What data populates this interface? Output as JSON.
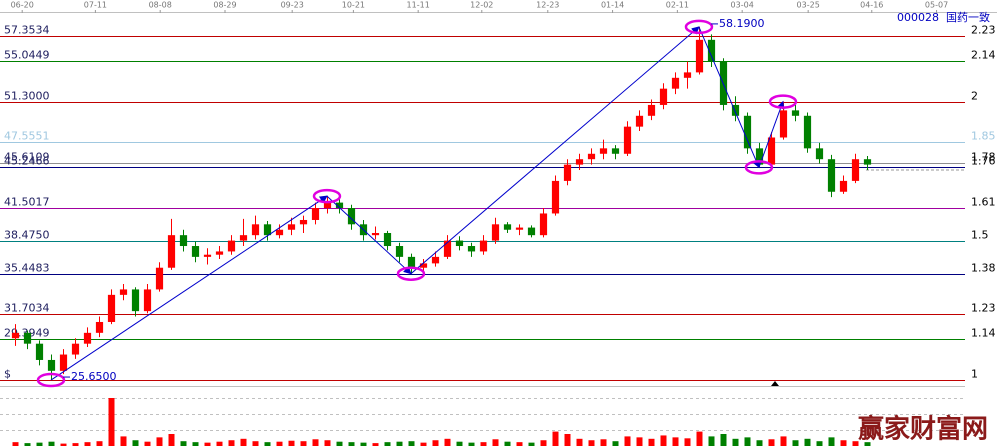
{
  "chart_data": {
    "type": "candlestick",
    "code": "000028",
    "name": "国药一致",
    "watermark": "赢家财富网",
    "xlim": [
      -1.25,
      79.17
    ],
    "ylim": [
      19.48,
      60.67
    ],
    "vlim": [
      0,
      100
    ],
    "up_color": "#ff0000",
    "down_color": "#008000",
    "trend_color": "#0000cc",
    "highlight_color": "#e000e0",
    "xticks": [
      {
        "value": 0.6,
        "label": "06-20"
      },
      {
        "value": 6.7,
        "label": "07-11"
      },
      {
        "value": 12.1,
        "label": "08-08"
      },
      {
        "value": 17.5,
        "label": "08-29"
      },
      {
        "value": 23.1,
        "label": "09-23"
      },
      {
        "value": 28.2,
        "label": "10-21"
      },
      {
        "value": 33.6,
        "label": "11-11"
      },
      {
        "value": 38.9,
        "label": "12-02"
      },
      {
        "value": 44.4,
        "label": "12-23"
      },
      {
        "value": 49.8,
        "label": "01-14"
      },
      {
        "value": 55.2,
        "label": "02-11"
      },
      {
        "value": 60.6,
        "label": "03-04"
      },
      {
        "value": 66.1,
        "label": "03-25"
      },
      {
        "value": 71.4,
        "label": "04-16"
      },
      {
        "value": 76.8,
        "label": "05-07"
      }
    ],
    "levels": [
      {
        "value": 57.3534,
        "label": "57.3534",
        "ratio": 2.23,
        "color": "#c00000"
      },
      {
        "value": 55.0449,
        "label": "55.0449",
        "ratio": 2.14,
        "color": "#008000"
      },
      {
        "value": 51.3,
        "label": "51.3000",
        "ratio": 2,
        "color": "#c00000"
      },
      {
        "value": 47.5551,
        "label": "47.5551",
        "ratio": 1.85,
        "color": "#a0c8e0"
      },
      {
        "value": 45.6109,
        "label": "45.6109",
        "ratio": 1.78,
        "color": "#909090"
      },
      {
        "value": 45.2466,
        "label": "45.2466",
        "ratio": 1.76,
        "color": "#000080"
      },
      {
        "value": 41.5017,
        "label": "41.5017",
        "ratio": 1.61,
        "color": "#a000a0"
      },
      {
        "value": 38.475,
        "label": "38.4750",
        "ratio": 1.5,
        "color": "#008080"
      },
      {
        "value": 35.4483,
        "label": "35.4483",
        "ratio": 1.38,
        "color": "#000080"
      },
      {
        "value": 31.7034,
        "label": "31.7034",
        "ratio": 1.23,
        "color": "#c00000"
      },
      {
        "value": 29.3949,
        "label": "29.3949",
        "ratio": 1.14,
        "color": "#008000"
      },
      {
        "value": 25.65,
        "label": "$",
        "ratio": 1,
        "color": "#c00000"
      }
    ],
    "trend": [
      {
        "i": 3,
        "price": 25.65,
        "label": "25.6500"
      },
      {
        "i": 26,
        "price": 42.6
      },
      {
        "i": 33,
        "price": 35.45
      },
      {
        "i": 57,
        "price": 58.19,
        "label": "58.1900"
      },
      {
        "i": 62,
        "price": 45.25
      },
      {
        "i": 64,
        "price": 51.3
      }
    ],
    "ohlc": [
      [
        29.5,
        30.8,
        28.8,
        30
      ],
      [
        30,
        30.2,
        28.5,
        29
      ],
      [
        29,
        29.3,
        27,
        27.5
      ],
      [
        27.5,
        28,
        25.65,
        26.5
      ],
      [
        26.5,
        28.5,
        26.2,
        28
      ],
      [
        28,
        29.5,
        27.6,
        29
      ],
      [
        29,
        30.5,
        28.7,
        30
      ],
      [
        30,
        31.5,
        29.6,
        31
      ],
      [
        31,
        34,
        30.8,
        33.5
      ],
      [
        33.5,
        34.5,
        33,
        34
      ],
      [
        34,
        34.2,
        31.5,
        32
      ],
      [
        32,
        34.5,
        31.8,
        34
      ],
      [
        34,
        36.5,
        33.8,
        36
      ],
      [
        36,
        40.5,
        35.8,
        39
      ],
      [
        39,
        39.5,
        37.5,
        38
      ],
      [
        38,
        38.4,
        36.5,
        37
      ],
      [
        37,
        37.8,
        36.3,
        37.2
      ],
      [
        37.2,
        38,
        36.8,
        37.5
      ],
      [
        37.5,
        39,
        37.2,
        38.5
      ],
      [
        38.5,
        40.5,
        38,
        39
      ],
      [
        39,
        40.8,
        38.6,
        40
      ],
      [
        40,
        40.3,
        38.5,
        39
      ],
      [
        39,
        40,
        38.7,
        39.5
      ],
      [
        39.5,
        40.6,
        39,
        40
      ],
      [
        40,
        40.8,
        39.2,
        40.4
      ],
      [
        40.4,
        42,
        40,
        41.5
      ],
      [
        41.5,
        42.6,
        41,
        42
      ],
      [
        42,
        42.3,
        41,
        41.5
      ],
      [
        41.5,
        41.8,
        39.5,
        40
      ],
      [
        40,
        40.4,
        38.5,
        39
      ],
      [
        39,
        39.8,
        38.6,
        39.2
      ],
      [
        39.2,
        39.4,
        37.6,
        38
      ],
      [
        38,
        38.3,
        36.5,
        37
      ],
      [
        37,
        37.3,
        35.45,
        36
      ],
      [
        36,
        36.8,
        35.6,
        36.4
      ],
      [
        36.4,
        37.5,
        36.1,
        37
      ],
      [
        37,
        39,
        36.8,
        38.5
      ],
      [
        38.5,
        38.9,
        37.6,
        38
      ],
      [
        38,
        38.3,
        37,
        37.5
      ],
      [
        37.5,
        39,
        37.2,
        38.5
      ],
      [
        38.5,
        40.6,
        38.2,
        40
      ],
      [
        40,
        40.2,
        39.2,
        39.5
      ],
      [
        39.5,
        40,
        39,
        39.7
      ],
      [
        39.7,
        39.9,
        38.8,
        39
      ],
      [
        39,
        41.5,
        38.8,
        41
      ],
      [
        41,
        44.5,
        40.8,
        44
      ],
      [
        44,
        46,
        43.6,
        45.5
      ],
      [
        45.5,
        46.5,
        45,
        46
      ],
      [
        46,
        47,
        45.5,
        46.5
      ],
      [
        46.5,
        47.8,
        46,
        47
      ],
      [
        47,
        47.3,
        46,
        46.5
      ],
      [
        46.5,
        49.5,
        46.3,
        49
      ],
      [
        49,
        50.5,
        48.6,
        50
      ],
      [
        50,
        51.5,
        49.6,
        51
      ],
      [
        51,
        53,
        50.6,
        52.5
      ],
      [
        52.5,
        54,
        52,
        53.5
      ],
      [
        53.5,
        55,
        52.5,
        54
      ],
      [
        54,
        58.19,
        53.8,
        57
      ],
      [
        57,
        57.5,
        54.5,
        55
      ],
      [
        55,
        55.3,
        50.5,
        51
      ],
      [
        51,
        51.8,
        49.5,
        50
      ],
      [
        50,
        50.3,
        46.5,
        47
      ],
      [
        47,
        47.5,
        45.25,
        45.5
      ],
      [
        45.5,
        48.5,
        45.3,
        48
      ],
      [
        48,
        51.3,
        47.8,
        50.5
      ],
      [
        50.5,
        51,
        49.5,
        50
      ],
      [
        50,
        50.3,
        46.6,
        47
      ],
      [
        47,
        47.5,
        45.6,
        46
      ],
      [
        46,
        46.4,
        42.5,
        43
      ],
      [
        43,
        44.5,
        42.8,
        44
      ],
      [
        44,
        46.5,
        43.8,
        46
      ],
      [
        46,
        46.3,
        45,
        45.5
      ]
    ],
    "volume": [
      8,
      6,
      7,
      9,
      5,
      6,
      8,
      10,
      100,
      20,
      12,
      9,
      18,
      25,
      10,
      8,
      7,
      9,
      12,
      15,
      10,
      8,
      9,
      11,
      10,
      14,
      12,
      9,
      8,
      7,
      6,
      8,
      9,
      10,
      7,
      12,
      15,
      9,
      7,
      8,
      14,
      9,
      8,
      7,
      12,
      30,
      25,
      15,
      12,
      14,
      10,
      20,
      18,
      15,
      22,
      18,
      16,
      30,
      20,
      25,
      15,
      18,
      12,
      14,
      20,
      12,
      15,
      10,
      18,
      12,
      10,
      8
    ]
  }
}
